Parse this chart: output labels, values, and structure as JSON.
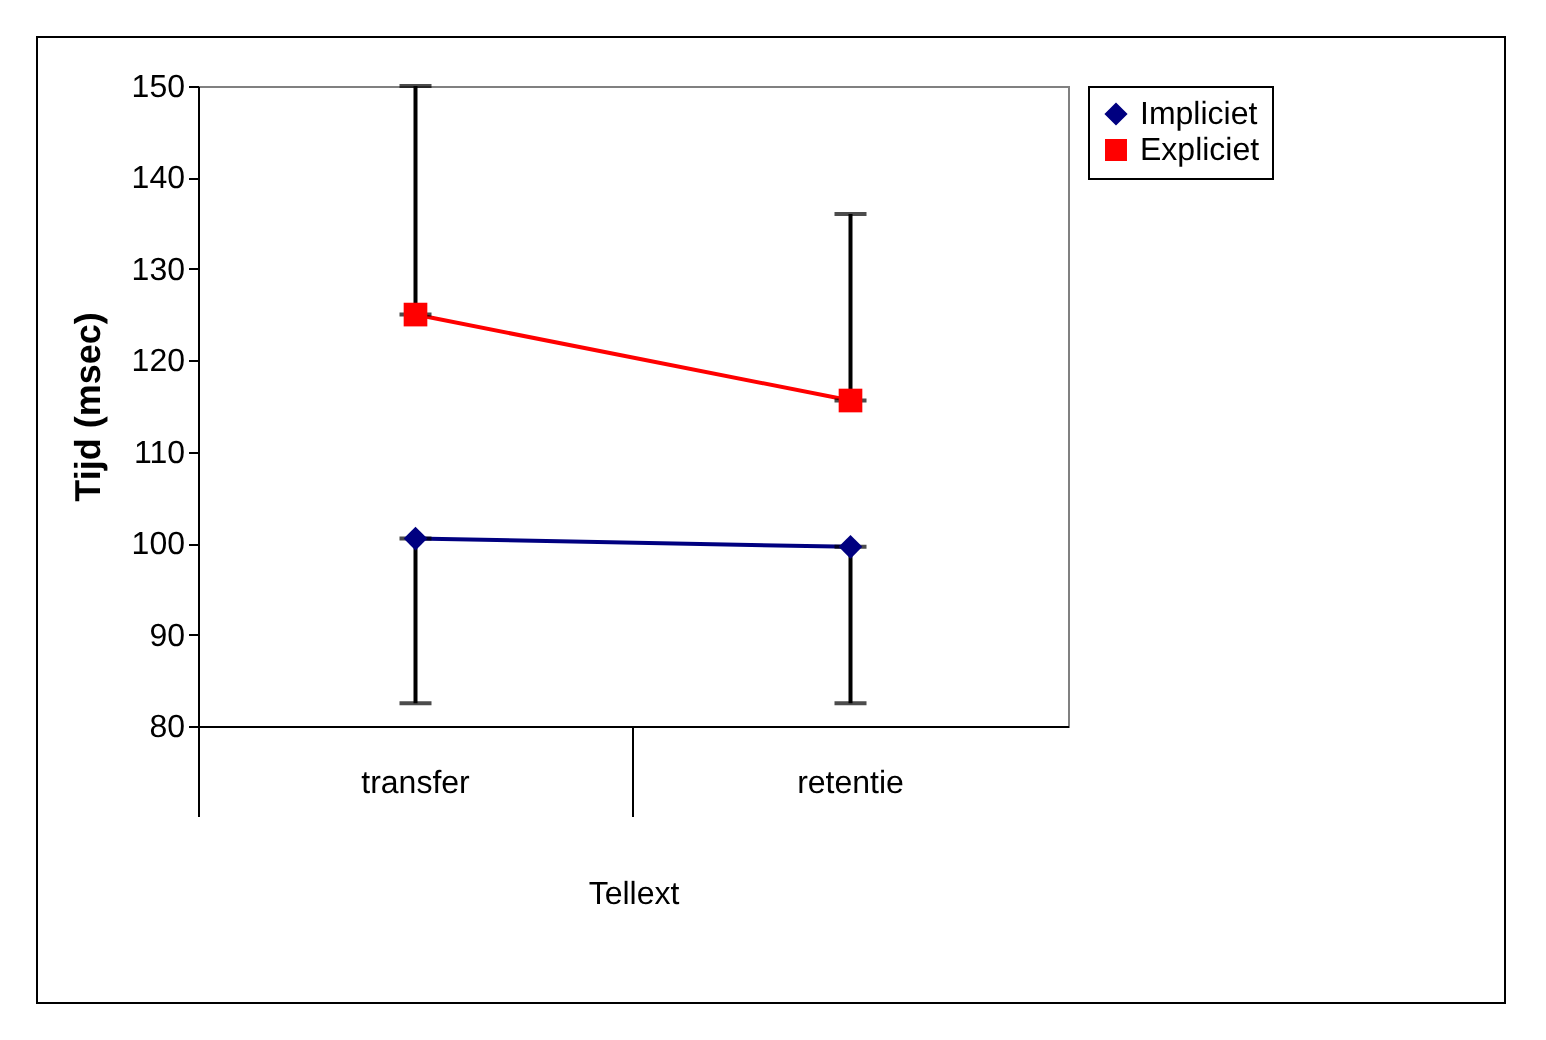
{
  "chart_data": {
    "type": "line",
    "ylabel": "Tijd (msec)",
    "xlabel": "Tellext",
    "categories": [
      "transfer",
      "retentie"
    ],
    "ylim": [
      80,
      150
    ],
    "yticks": [
      80,
      90,
      100,
      110,
      120,
      130,
      140,
      150
    ],
    "grid": false,
    "legend": "right",
    "series": [
      {
        "name": "Impliciet",
        "color": "#000080",
        "marker": "diamond",
        "values": [
          100.5,
          99.6
        ],
        "errors": [
          [
            82.5,
            100.5
          ],
          [
            82.5,
            99.6
          ]
        ]
      },
      {
        "name": "Expliciet",
        "color": "#ff0000",
        "marker": "square",
        "values": [
          125,
          115.6
        ],
        "errors": [
          [
            125,
            150
          ],
          [
            115.6,
            136
          ]
        ]
      }
    ]
  }
}
